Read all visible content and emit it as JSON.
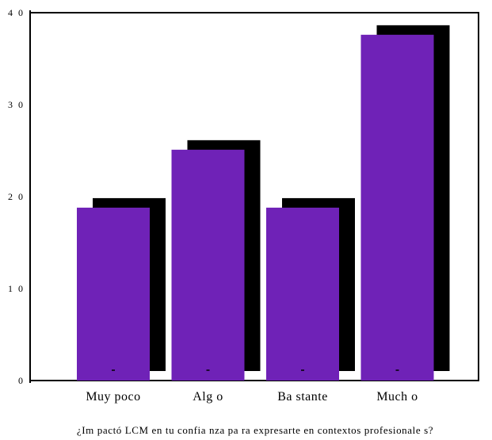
{
  "chart_data": {
    "type": "bar",
    "categories": [
      "Muy poco",
      "Alg o",
      "Ba stante",
      "Much o"
    ],
    "values": [
      18.8,
      25.1,
      18.8,
      37.6
    ],
    "xlabel": "¿Im pactó LCM en tu confia nza pa ra expresarte en contextos profesionale s?",
    "ylabel": "",
    "ylim": [
      0,
      40
    ],
    "yticks": [
      0,
      10,
      20,
      30,
      40
    ],
    "ytick_labels": [
      "0",
      "1 0",
      "2 0",
      "3 0",
      "4 0"
    ],
    "grid": false,
    "legend": "none",
    "colors": {
      "bar": "#6f22b7",
      "shadow": "#000000",
      "axis": "#000000"
    }
  }
}
